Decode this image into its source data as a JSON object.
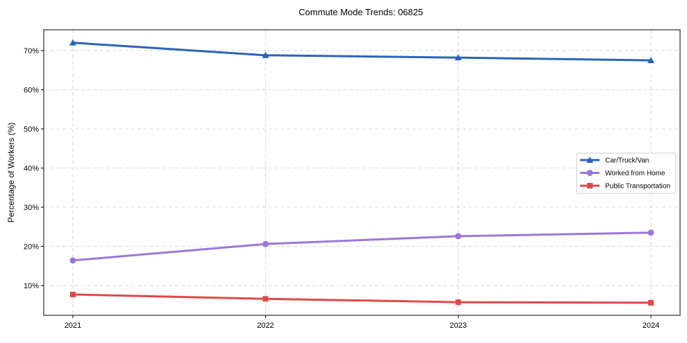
{
  "chart_data": {
    "type": "line",
    "title": "Commute Mode Trends: 06825",
    "xlabel": "",
    "ylabel": "Percentage of Workers (%)",
    "categories": [
      "2021",
      "2022",
      "2023",
      "2024"
    ],
    "ylim": [
      2.4,
      75.3
    ],
    "yticks": [
      10,
      20,
      30,
      40,
      50,
      60,
      70
    ],
    "ytick_labels": [
      "10%",
      "20%",
      "30%",
      "40%",
      "50%",
      "60%",
      "70%"
    ],
    "grid": true,
    "legend_position": "center-right",
    "series": [
      {
        "name": "Car/Truck/Van",
        "color": "#2a62b8",
        "marker": "triangle",
        "values": [
          72.0,
          68.8,
          68.2,
          67.5
        ]
      },
      {
        "name": "Worked from Home",
        "color": "#9b77d9",
        "marker": "circle",
        "values": [
          16.4,
          20.6,
          22.6,
          23.5
        ]
      },
      {
        "name": "Public Transportation",
        "color": "#e04848",
        "marker": "square",
        "values": [
          7.7,
          6.6,
          5.75,
          5.6
        ]
      }
    ]
  }
}
